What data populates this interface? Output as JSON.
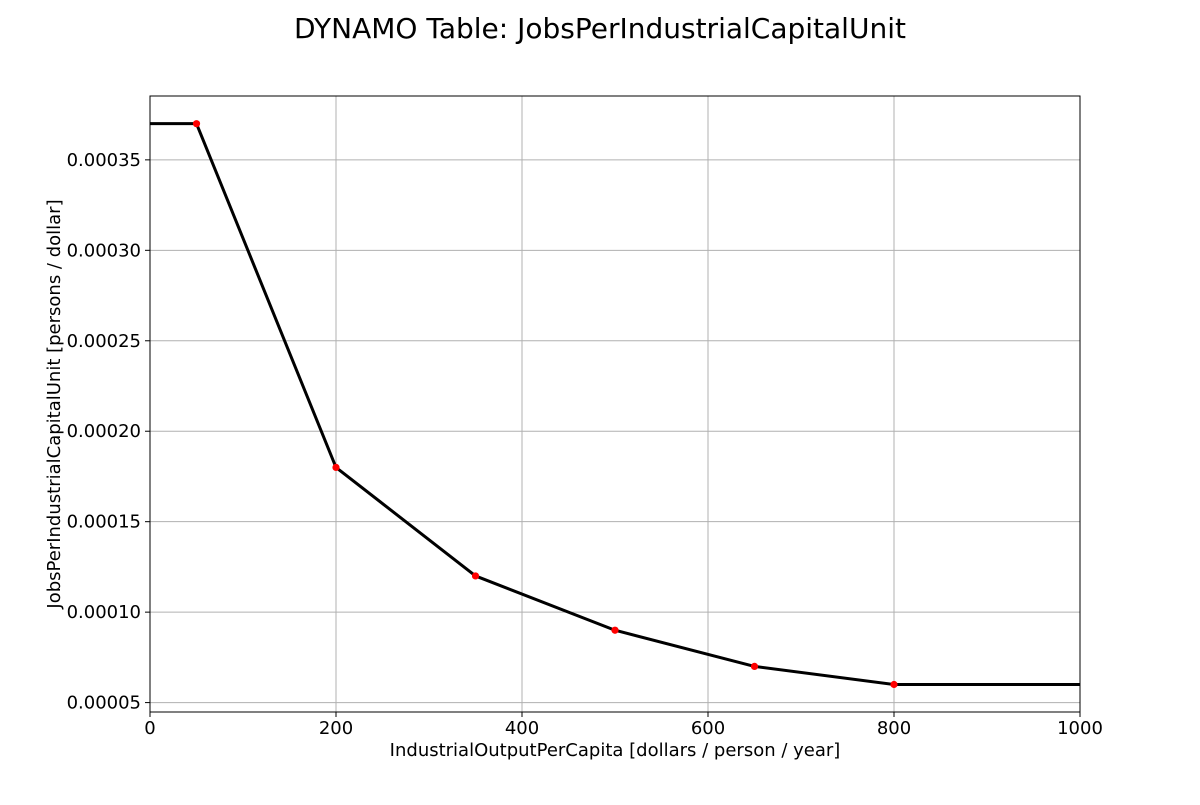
{
  "chart_data": {
    "type": "line",
    "title": "DYNAMO Table: JobsPerIndustrialCapitalUnit",
    "xlabel": "IndustrialOutputPerCapita [dollars / person / year]",
    "ylabel": "JobsPerIndustrialCapitalUnit [persons / dollar]",
    "xlim": [
      0,
      1000
    ],
    "ylim": [
      4.48e-05,
      0.0003853
    ],
    "x_ticks": [
      0,
      200,
      400,
      600,
      800,
      1000
    ],
    "x_tick_labels": [
      "0",
      "200",
      "400",
      "600",
      "800",
      "1000"
    ],
    "y_ticks": [
      5e-05,
      0.0001,
      0.00015,
      0.0002,
      0.00025,
      0.0003,
      0.00035
    ],
    "y_tick_labels": [
      "0.00005",
      "0.00010",
      "0.00015",
      "0.00020",
      "0.00025",
      "0.00030",
      "0.00035"
    ],
    "grid": true,
    "line": {
      "x": [
        0,
        50,
        200,
        350,
        500,
        650,
        800,
        1000
      ],
      "y": [
        0.00037,
        0.00037,
        0.00018,
        0.00012,
        9e-05,
        7e-05,
        6e-05,
        6e-05
      ]
    },
    "points": {
      "x": [
        50,
        200,
        350,
        500,
        650,
        800
      ],
      "y": [
        0.00037,
        0.00018,
        0.00012,
        9e-05,
        7e-05,
        6e-05
      ]
    },
    "colors": {
      "line": "#000000",
      "points": "#ff0000",
      "grid": "#b0b0b0"
    }
  }
}
